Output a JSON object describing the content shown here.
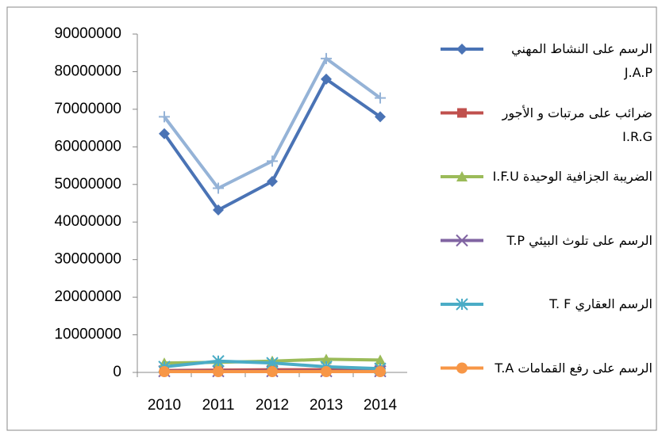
{
  "chart_data": {
    "type": "line",
    "categories": [
      "2010",
      "2011",
      "2012",
      "2013",
      "2014"
    ],
    "ylim": [
      0,
      90000000
    ],
    "yticks": [
      0,
      10000000,
      20000000,
      30000000,
      40000000,
      50000000,
      60000000,
      70000000,
      80000000,
      90000000
    ],
    "grid": false,
    "legend": "right",
    "series": [
      {
        "name": "الرسم على النشاط المهني J.A.P",
        "color": "#4a73b5",
        "marker": "diamond",
        "values": [
          63500000,
          43200000,
          50800000,
          78000000,
          68000000
        ]
      },
      {
        "name": "ضرائب على مرتبات و الأجور I.R.G",
        "color": "#c0504d",
        "marker": "square",
        "values": [
          500000,
          600000,
          700000,
          700000,
          600000
        ]
      },
      {
        "name": "الضريبة الجزافية الوحيدة I.F.U",
        "color": "#9bbb59",
        "marker": "triangle",
        "values": [
          2500000,
          2700000,
          3000000,
          3500000,
          3300000
        ]
      },
      {
        "name": "الرسم على تلوث البيئي T.P",
        "color": "#8064a2",
        "marker": "x",
        "values": [
          300000,
          300000,
          300000,
          300000,
          300000
        ]
      },
      {
        "name": "الرسم العقاري T. F",
        "color": "#4bacc6",
        "marker": "asterisk",
        "values": [
          1500000,
          3000000,
          2500000,
          1500000,
          1000000
        ]
      },
      {
        "name": "الرسم على رفع القمامات T.A",
        "color": "#f79646",
        "marker": "circle",
        "values": [
          200000,
          200000,
          200000,
          200000,
          200000
        ]
      },
      {
        "color": "#95b3d7",
        "marker": "plus",
        "values": [
          68000000,
          49000000,
          56200000,
          83500000,
          73000000
        ]
      }
    ]
  }
}
